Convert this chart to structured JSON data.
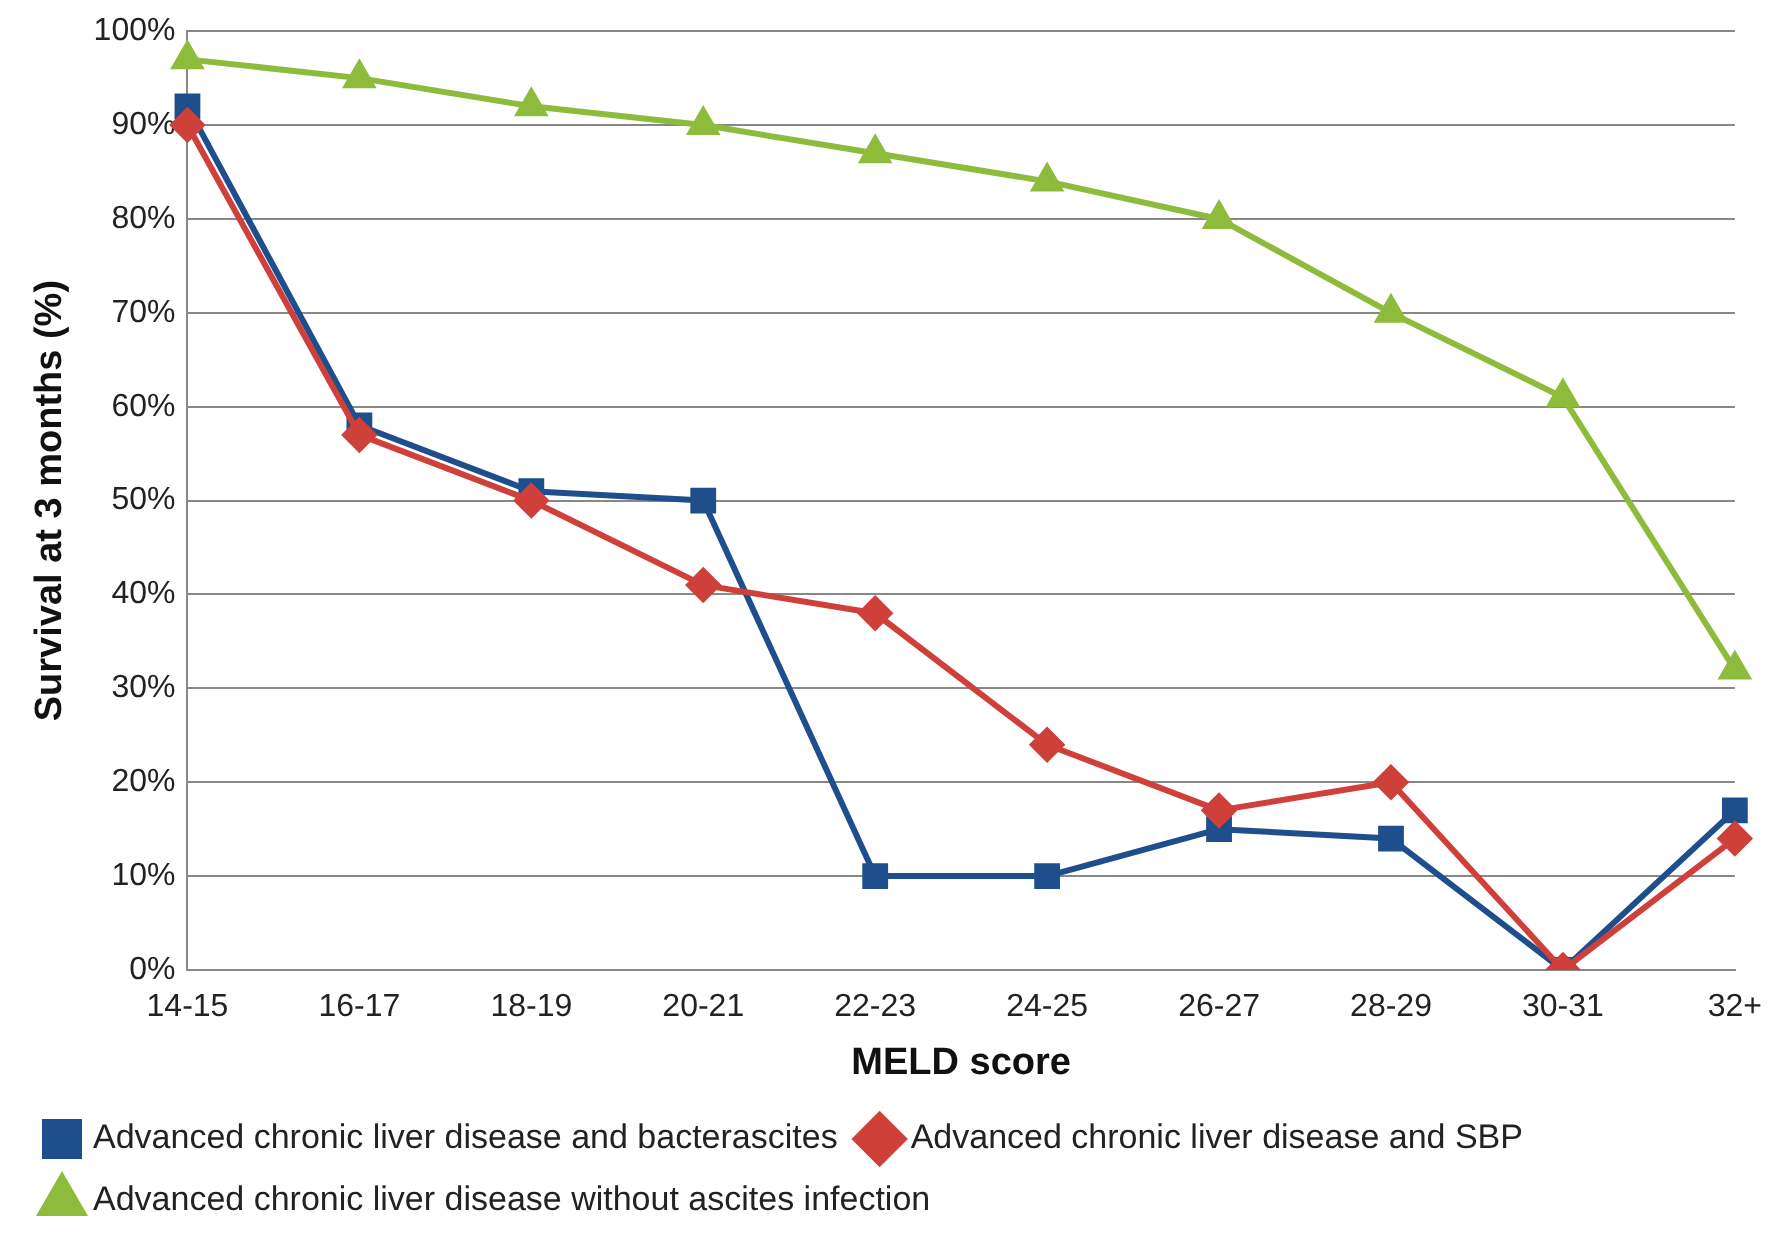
{
  "chart_data": {
    "type": "line",
    "xlabel": "MELD score",
    "ylabel": "Survival at 3 months (%)",
    "categories": [
      "14-15",
      "16-17",
      "18-19",
      "20-21",
      "22-23",
      "24-25",
      "26-27",
      "28-29",
      "30-31",
      "32+"
    ],
    "series": [
      {
        "name": "Advanced chronic liver disease and bacterascites",
        "color": "#1f4e8c",
        "marker": "square",
        "values": [
          92,
          58,
          51,
          50,
          10,
          10,
          15,
          14,
          0,
          17
        ]
      },
      {
        "name": "Advanced chronic liver disease and SBP",
        "color": "#d0403a",
        "marker": "diamond",
        "values": [
          90,
          57,
          50,
          41,
          38,
          24,
          17,
          20,
          0,
          14
        ]
      },
      {
        "name": "Advanced chronic liver disease without ascites infection",
        "color": "#8dbb3c",
        "marker": "triangle",
        "values": [
          97,
          95,
          92,
          90,
          87,
          84,
          80,
          70,
          61,
          32
        ]
      }
    ],
    "ylim": [
      0,
      100
    ],
    "yticks": [
      {
        "value": 0,
        "label": "0%"
      },
      {
        "value": 10,
        "label": "10%"
      },
      {
        "value": 20,
        "label": "20%"
      },
      {
        "value": 30,
        "label": "30%"
      },
      {
        "value": 40,
        "label": "40%"
      },
      {
        "value": 50,
        "label": "50%"
      },
      {
        "value": 60,
        "label": "60%"
      },
      {
        "value": 70,
        "label": "70%"
      },
      {
        "value": 80,
        "label": "80%"
      },
      {
        "value": 90,
        "label": "90%"
      },
      {
        "value": 100,
        "label": "100%"
      }
    ],
    "grid": "y",
    "legend": "bottom",
    "line_style": "solid"
  }
}
